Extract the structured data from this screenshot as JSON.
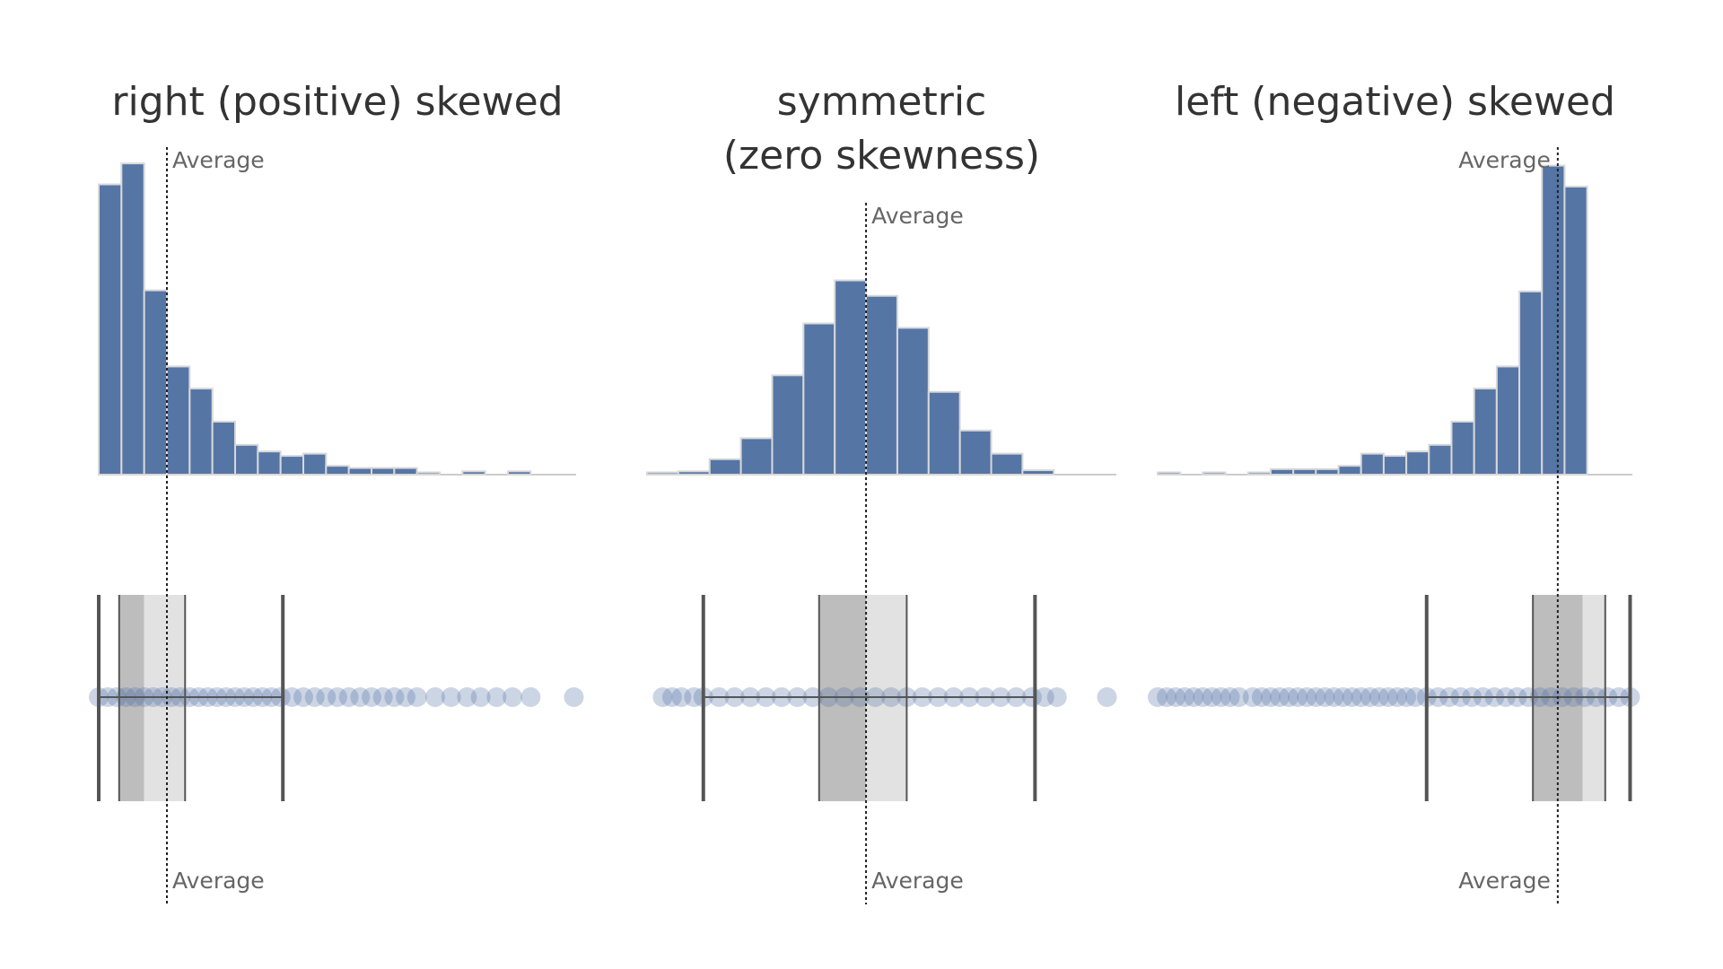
{
  "chart_data": [
    {
      "type": "histogram",
      "title": [
        "right (positive) skewed"
      ],
      "color": "#5575a5",
      "bins": [
        0,
        1,
        2,
        3,
        4,
        5,
        6,
        7,
        8,
        9,
        10,
        11,
        12,
        13,
        14,
        15,
        16,
        17,
        18,
        19,
        20,
        21
      ],
      "counts": [
        263,
        282,
        167,
        98,
        78,
        48,
        27,
        21,
        17,
        19,
        8,
        6,
        6,
        6,
        2,
        0,
        3,
        0,
        3,
        0,
        0
      ],
      "ylim": [
        0,
        300
      ],
      "xlim": [
        0,
        21
      ],
      "average": 3.0,
      "average_label": "Average",
      "box": {
        "whisker_low": 0.0,
        "q1": 0.9,
        "median": 2.0,
        "q3": 3.8,
        "whisker_high": 8.1
      },
      "points": [
        0,
        0.4,
        0.8,
        1.2,
        1.6,
        2,
        2.4,
        2.8,
        3.2,
        3.6,
        4,
        4.4,
        4.8,
        5.2,
        5.6,
        6,
        6.4,
        6.8,
        7.2,
        7.6,
        8,
        8.5,
        9,
        9.5,
        10,
        10.5,
        11,
        11.5,
        12,
        12.5,
        13,
        13.5,
        14,
        14.8,
        15.5,
        16.2,
        16.8,
        17.5,
        18.2,
        19,
        20.9
      ]
    },
    {
      "type": "histogram",
      "title": [
        "symmetric",
        "(zero skewness)"
      ],
      "color": "#5575a5",
      "bins": [
        0,
        1,
        2,
        3,
        4,
        5,
        6,
        7,
        8,
        9,
        10,
        11,
        12,
        13,
        14,
        15
      ],
      "counts": [
        2,
        3,
        14,
        33,
        90,
        137,
        176,
        162,
        133,
        75,
        40,
        19,
        4,
        0,
        0
      ],
      "ylim": [
        0,
        300
      ],
      "xlim": [
        0,
        15
      ],
      "average": 7.0,
      "average_label": "Average",
      "box": {
        "whisker_low": 1.8,
        "q1": 5.5,
        "median": 7.0,
        "q3": 8.3,
        "whisker_high": 12.4
      },
      "points": [
        0.5,
        0.8,
        1.1,
        1.5,
        1.8,
        2.3,
        2.8,
        3.3,
        3.8,
        4.3,
        4.8,
        5.3,
        5.8,
        6.3,
        6.8,
        7.3,
        7.8,
        8.3,
        8.8,
        9.3,
        9.8,
        10.3,
        10.8,
        11.3,
        11.8,
        12.3,
        12.7,
        13.1,
        14.7
      ]
    },
    {
      "type": "histogram",
      "title": [
        "left (negative) skewed"
      ],
      "color": "#5575a5",
      "bins": [
        0,
        1,
        2,
        3,
        4,
        5,
        6,
        7,
        8,
        9,
        10,
        11,
        12,
        13,
        14,
        15,
        16,
        17,
        18,
        19,
        20,
        21
      ],
      "counts": [
        2,
        0,
        2,
        0,
        2,
        5,
        5,
        5,
        8,
        19,
        17,
        21,
        27,
        48,
        78,
        98,
        166,
        280,
        261,
        0,
        0
      ],
      "ylim": [
        0,
        300
      ],
      "xlim": [
        0,
        21
      ],
      "average": 17.7,
      "average_label": "Average",
      "box": {
        "whisker_low": 11.9,
        "q1": 16.6,
        "median": 18.8,
        "q3": 19.8,
        "whisker_high": 20.9
      },
      "points": [
        0,
        0.4,
        0.8,
        1.2,
        1.6,
        2,
        2.4,
        2.8,
        3.2,
        3.6,
        4.2,
        4.6,
        5,
        5.4,
        5.8,
        6.2,
        6.6,
        7,
        7.4,
        7.8,
        8.2,
        8.6,
        9,
        9.4,
        9.8,
        10.2,
        10.6,
        11,
        11.4,
        11.9,
        12.4,
        12.9,
        13.4,
        13.9,
        14.4,
        14.9,
        15.4,
        15.9,
        16.4,
        16.9,
        17.4,
        17.9,
        18.4,
        18.9,
        19.4,
        19.9,
        20.4,
        20.9
      ]
    }
  ]
}
